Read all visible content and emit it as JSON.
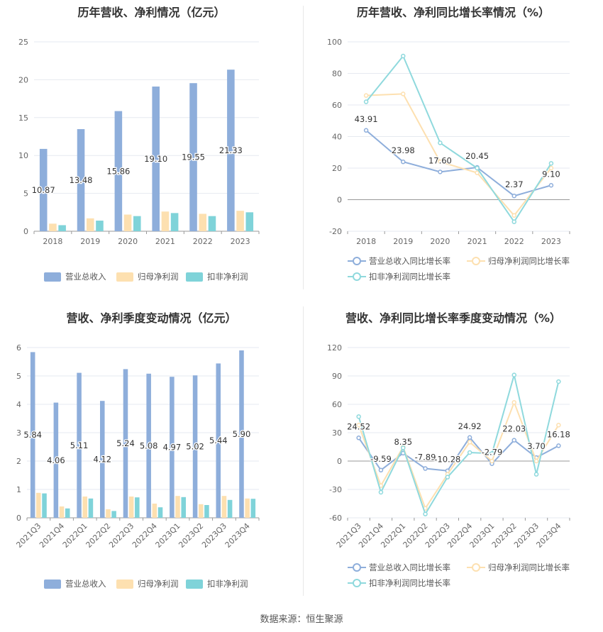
{
  "source": "数据来源：恒生聚源",
  "colors": {
    "revenue": "#8eaedb",
    "net_profit": "#fde0b0",
    "deducted_profit": "#7fd3d9",
    "rev_line": "#8eaedb",
    "np_line": "#fde0b0",
    "dp_line": "#8fd9dd"
  },
  "chart_data": [
    {
      "type": "bar",
      "title": "历年营收、净利情况（亿元）",
      "categories": [
        "2018",
        "2019",
        "2020",
        "2021",
        "2022",
        "2023"
      ],
      "ylim": [
        0,
        25
      ],
      "yticks": [
        "0",
        "5",
        "10",
        "15",
        "20",
        "25"
      ],
      "grid": true,
      "legend": "bottom",
      "series": [
        {
          "name": "营业总收入",
          "values": [
            10.87,
            13.48,
            15.86,
            19.1,
            19.55,
            21.33
          ],
          "labels": [
            "10.87",
            "13.48",
            "15.86",
            "19.10",
            "19.55",
            "21.33"
          ]
        },
        {
          "name": "归母净利润",
          "values": [
            1.0,
            1.7,
            2.2,
            2.6,
            2.3,
            2.7
          ]
        },
        {
          "name": "扣非净利润",
          "values": [
            0.8,
            1.4,
            2.0,
            2.4,
            2.0,
            2.5
          ]
        }
      ]
    },
    {
      "type": "line",
      "title": "历年营收、净利同比增长率情况（%）",
      "categories": [
        "2018",
        "2019",
        "2020",
        "2021",
        "2022",
        "2023"
      ],
      "ylim": [
        -20,
        100
      ],
      "yticks": [
        "-20",
        "0",
        "20",
        "40",
        "60",
        "80",
        "100"
      ],
      "grid": true,
      "legend": "bottom",
      "series": [
        {
          "name": "营业总收入同比增长率",
          "values": [
            43.91,
            23.98,
            17.6,
            20.45,
            2.37,
            9.1
          ],
          "labels": [
            "43.91",
            "23.98",
            "17.60",
            "20.45",
            "2.37",
            "9.10"
          ]
        },
        {
          "name": "归母净利润同比增长率",
          "values": [
            66,
            67,
            24,
            17,
            -10,
            20
          ]
        },
        {
          "name": "扣非净利润同比增长率",
          "values": [
            62,
            91,
            36,
            20,
            -14,
            23
          ]
        }
      ]
    },
    {
      "type": "bar",
      "title": "营收、净利季度变动情况（亿元）",
      "categories": [
        "2021Q3",
        "2021Q4",
        "2022Q1",
        "2022Q2",
        "2022Q3",
        "2022Q4",
        "2023Q1",
        "2023Q2",
        "2023Q3",
        "2023Q4"
      ],
      "ylim": [
        0,
        6
      ],
      "yticks": [
        "0",
        "1",
        "2",
        "3",
        "4",
        "5",
        "6"
      ],
      "grid": true,
      "legend": "bottom",
      "series": [
        {
          "name": "营业总收入",
          "values": [
            5.84,
            4.06,
            5.11,
            4.12,
            5.24,
            5.08,
            4.97,
            5.02,
            5.44,
            5.9
          ],
          "labels": [
            "5.84",
            "4.06",
            "5.11",
            "4.12",
            "5.24",
            "5.08",
            "4.97",
            "5.02",
            "5.44",
            "5.90"
          ]
        },
        {
          "name": "归母净利润",
          "values": [
            0.88,
            0.4,
            0.75,
            0.3,
            0.75,
            0.5,
            0.77,
            0.48,
            0.77,
            0.68
          ]
        },
        {
          "name": "扣非净利润",
          "values": [
            0.86,
            0.33,
            0.68,
            0.24,
            0.72,
            0.37,
            0.73,
            0.45,
            0.63,
            0.67
          ]
        }
      ]
    },
    {
      "type": "line",
      "title": "营收、净利同比增长率季度变动情况（%）",
      "categories": [
        "2021Q3",
        "2021Q4",
        "2022Q1",
        "2022Q2",
        "2022Q3",
        "2022Q4",
        "2023Q1",
        "2023Q2",
        "2023Q3",
        "2023Q4"
      ],
      "ylim": [
        -60,
        120
      ],
      "yticks": [
        "-60",
        "-30",
        "0",
        "30",
        "60",
        "90",
        "120"
      ],
      "grid": true,
      "legend": "bottom",
      "series": [
        {
          "name": "营业总收入同比增长率",
          "values": [
            24.52,
            -9.59,
            8.35,
            -7.89,
            -10.28,
            24.92,
            -2.79,
            22.03,
            3.7,
            16.18
          ],
          "labels": [
            "24.52",
            "-9.59",
            "8.35",
            "-7.89",
            "-10.28",
            "24.92",
            "-2.79",
            "22.03",
            "3.70",
            "16.18"
          ]
        },
        {
          "name": "归母净利润同比增长率",
          "values": [
            38,
            -26,
            15,
            -50,
            -14,
            20,
            0,
            62,
            0,
            38
          ]
        },
        {
          "name": "扣非净利润同比增长率",
          "values": [
            47,
            -33,
            14,
            -56,
            -17,
            9,
            8,
            91,
            -14,
            84
          ]
        }
      ]
    }
  ]
}
